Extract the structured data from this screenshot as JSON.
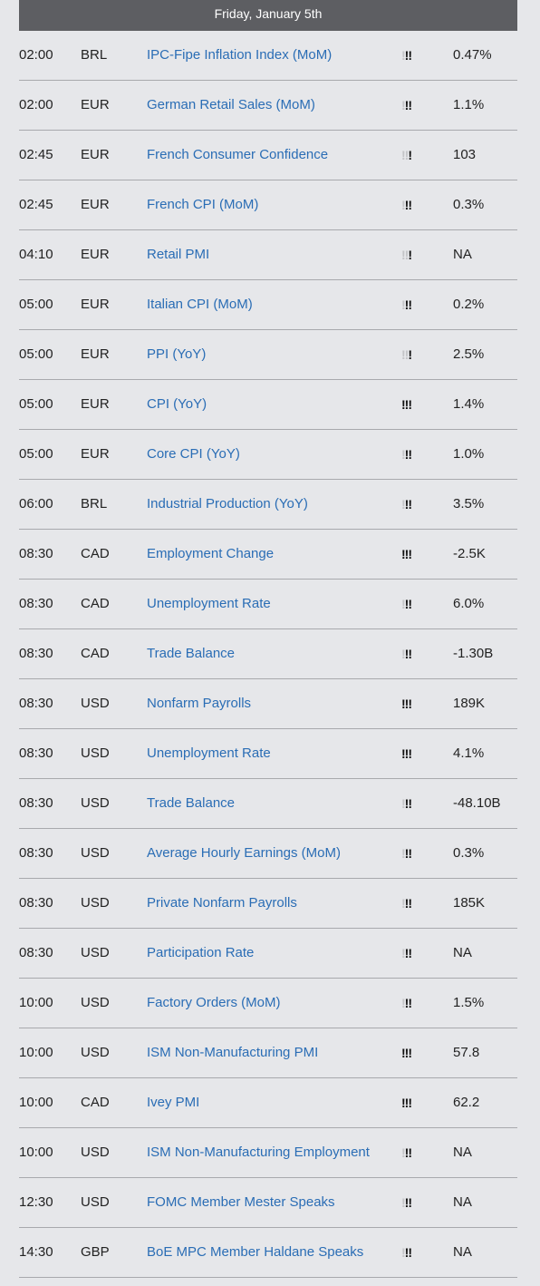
{
  "header": {
    "date": "Friday, January 5th"
  },
  "rows": [
    {
      "time": "02:00",
      "currency": "BRL",
      "event": "IPC-Fipe Inflation Index (MoM)",
      "impact": 2,
      "value": "0.47%"
    },
    {
      "time": "02:00",
      "currency": "EUR",
      "event": "German Retail Sales (MoM)",
      "impact": 2,
      "value": "1.1%"
    },
    {
      "time": "02:45",
      "currency": "EUR",
      "event": "French Consumer Confidence",
      "impact": 1,
      "value": "103"
    },
    {
      "time": "02:45",
      "currency": "EUR",
      "event": "French CPI (MoM)",
      "impact": 2,
      "value": "0.3%"
    },
    {
      "time": "04:10",
      "currency": "EUR",
      "event": "Retail PMI",
      "impact": 1,
      "value": "NA"
    },
    {
      "time": "05:00",
      "currency": "EUR",
      "event": "Italian CPI (MoM)",
      "impact": 2,
      "value": "0.2%"
    },
    {
      "time": "05:00",
      "currency": "EUR",
      "event": "PPI (YoY)",
      "impact": 1,
      "value": "2.5%"
    },
    {
      "time": "05:00",
      "currency": "EUR",
      "event": "CPI (YoY)",
      "impact": 3,
      "value": "1.4%"
    },
    {
      "time": "05:00",
      "currency": "EUR",
      "event": "Core CPI (YoY)",
      "impact": 2,
      "value": "1.0%"
    },
    {
      "time": "06:00",
      "currency": "BRL",
      "event": "Industrial Production (YoY)",
      "impact": 2,
      "value": "3.5%"
    },
    {
      "time": "08:30",
      "currency": "CAD",
      "event": "Employment Change",
      "impact": 3,
      "value": "-2.5K"
    },
    {
      "time": "08:30",
      "currency": "CAD",
      "event": "Unemployment Rate",
      "impact": 2,
      "value": "6.0%"
    },
    {
      "time": "08:30",
      "currency": "CAD",
      "event": "Trade Balance",
      "impact": 2,
      "value": "-1.30B"
    },
    {
      "time": "08:30",
      "currency": "USD",
      "event": "Nonfarm Payrolls",
      "impact": 3,
      "value": "189K"
    },
    {
      "time": "08:30",
      "currency": "USD",
      "event": "Unemployment Rate",
      "impact": 3,
      "value": "4.1%"
    },
    {
      "time": "08:30",
      "currency": "USD",
      "event": "Trade Balance",
      "impact": 2,
      "value": "-48.10B"
    },
    {
      "time": "08:30",
      "currency": "USD",
      "event": "Average Hourly Earnings (MoM)",
      "impact": 2,
      "value": "0.3%"
    },
    {
      "time": "08:30",
      "currency": "USD",
      "event": "Private Nonfarm Payrolls",
      "impact": 2,
      "value": "185K"
    },
    {
      "time": "08:30",
      "currency": "USD",
      "event": "Participation Rate",
      "impact": 2,
      "value": "NA"
    },
    {
      "time": "10:00",
      "currency": "USD",
      "event": "Factory Orders (MoM)",
      "impact": 2,
      "value": "1.5%"
    },
    {
      "time": "10:00",
      "currency": "USD",
      "event": "ISM Non-Manufacturing PMI",
      "impact": 3,
      "value": "57.8"
    },
    {
      "time": "10:00",
      "currency": "CAD",
      "event": "Ivey PMI",
      "impact": 3,
      "value": "62.2"
    },
    {
      "time": "10:00",
      "currency": "USD",
      "event": "ISM Non-Manufacturing Employment",
      "impact": 2,
      "value": "NA"
    },
    {
      "time": "12:30",
      "currency": "USD",
      "event": "FOMC Member Mester Speaks",
      "impact": 2,
      "value": "NA"
    },
    {
      "time": "14:30",
      "currency": "GBP",
      "event": "BoE MPC Member Haldane Speaks",
      "impact": 2,
      "value": "NA"
    }
  ],
  "colors": {
    "header_bg": "#5d5e62",
    "event_link": "#2a6db5",
    "impact_on": "#111111",
    "impact_off": "#c3c4c7"
  },
  "icons": {
    "impact": "exclamation-mark-icon"
  }
}
